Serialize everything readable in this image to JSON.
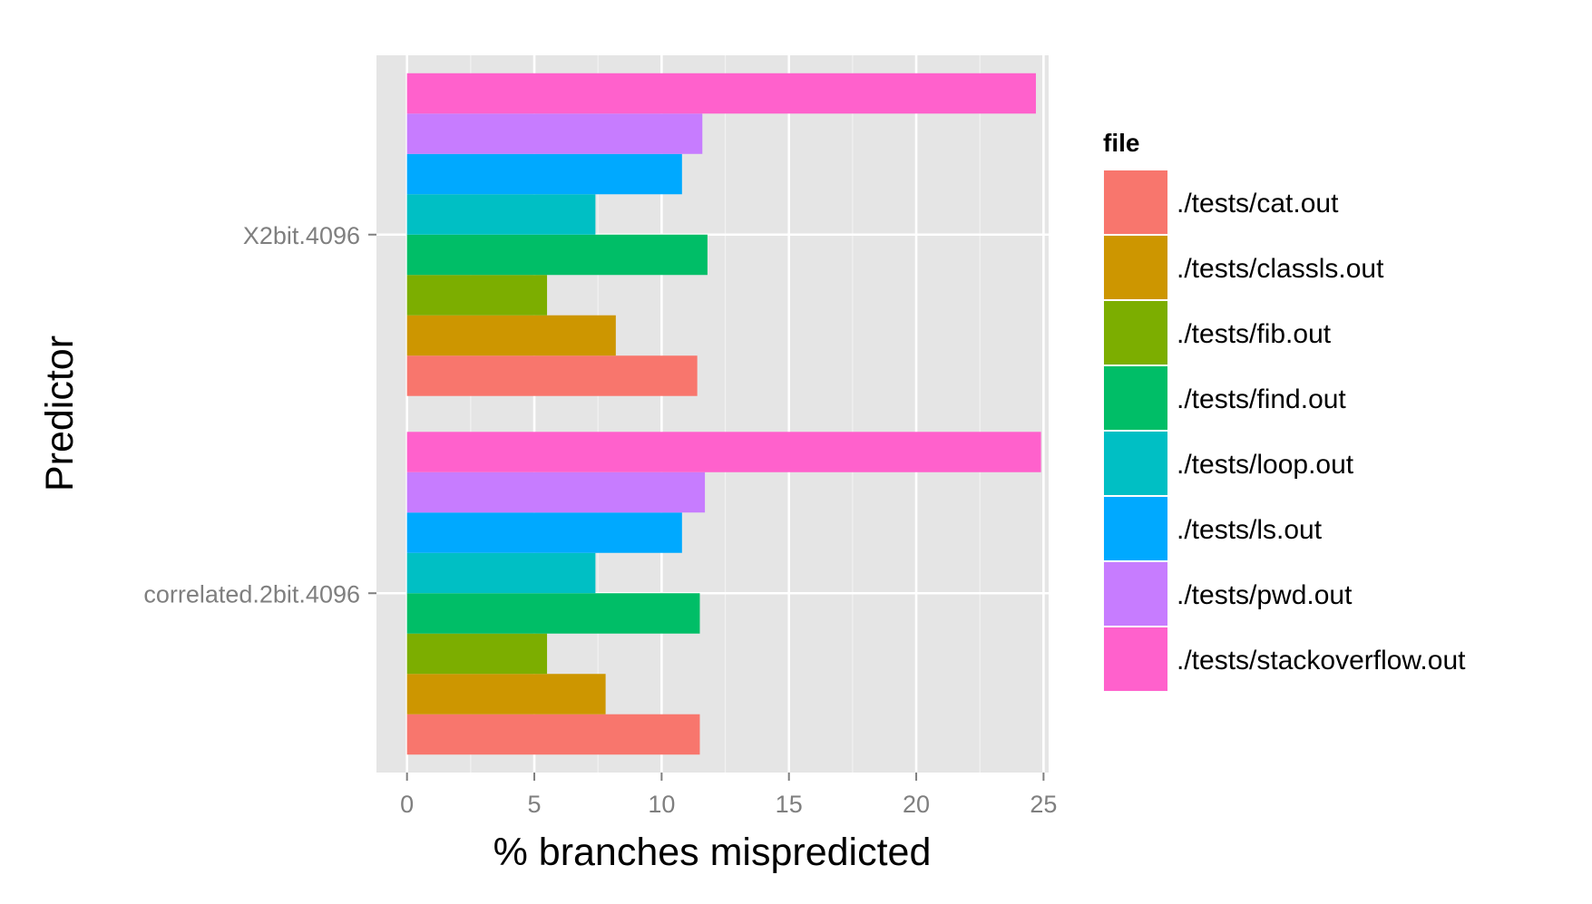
{
  "chart_data": {
    "type": "bar",
    "orientation": "horizontal",
    "categories": [
      "correlated.2bit.4096",
      "X2bit.4096"
    ],
    "xlabel": "% branches mispredicted",
    "ylabel": "Predictor",
    "xlim": [
      -1.2,
      25.2
    ],
    "xticks": [
      0,
      5,
      10,
      15,
      20,
      25
    ],
    "grid": true,
    "legend": {
      "title": "file",
      "placement": "right"
    },
    "series": [
      {
        "name": "./tests/cat.out",
        "color": "#F8766D",
        "values": [
          11.5,
          11.4
        ]
      },
      {
        "name": "./tests/classls.out",
        "color": "#CD9600",
        "values": [
          7.8,
          8.2
        ]
      },
      {
        "name": "./tests/fib.out",
        "color": "#7CAE00",
        "values": [
          5.5,
          5.5
        ]
      },
      {
        "name": "./tests/find.out",
        "color": "#00BE67",
        "values": [
          11.5,
          11.8
        ]
      },
      {
        "name": "./tests/loop.out",
        "color": "#00BFC4",
        "values": [
          7.4,
          7.4
        ]
      },
      {
        "name": "./tests/ls.out",
        "color": "#00A9FF",
        "values": [
          10.8,
          10.8
        ]
      },
      {
        "name": "./tests/pwd.out",
        "color": "#C77CFF",
        "values": [
          11.7,
          11.6
        ]
      },
      {
        "name": "./tests/stackoverflow.out",
        "color": "#FF61CC",
        "values": [
          24.9,
          24.7
        ]
      }
    ]
  }
}
